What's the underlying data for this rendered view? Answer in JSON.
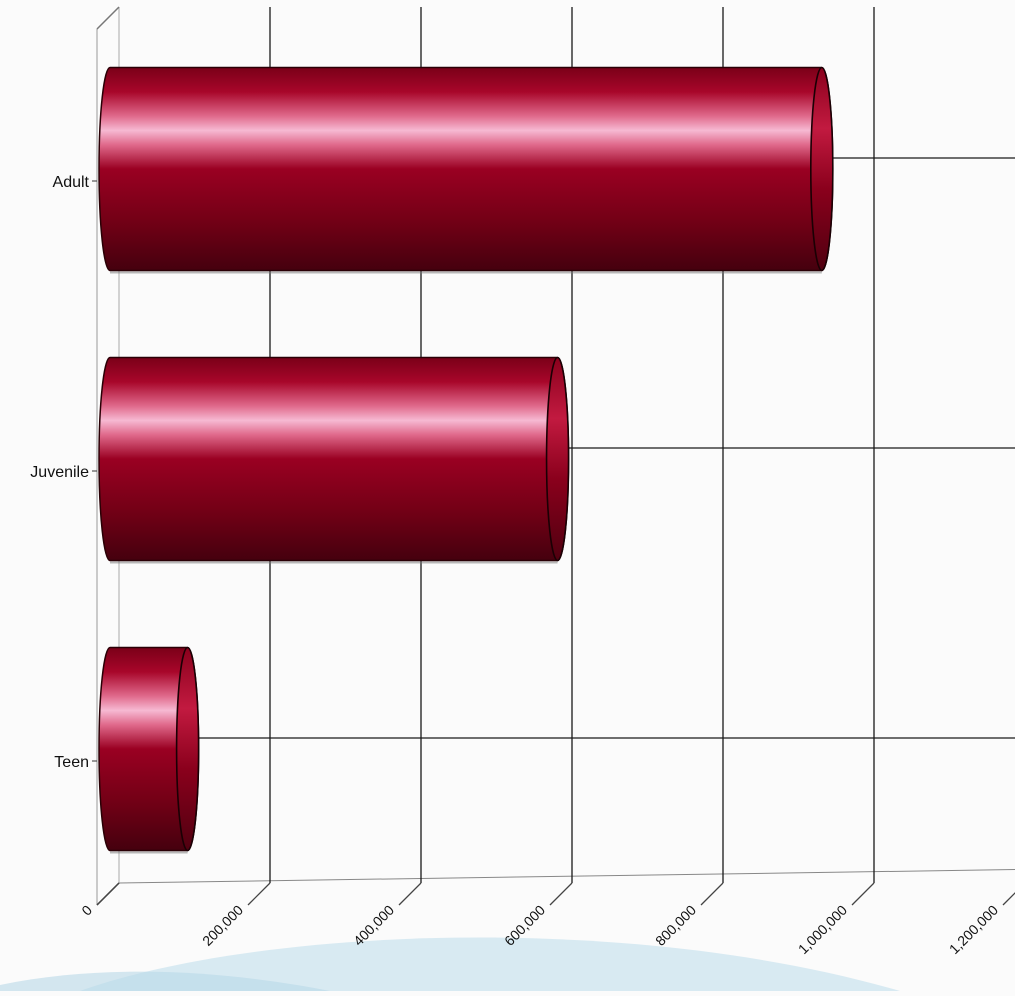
{
  "chart_data": {
    "type": "bar",
    "orientation": "horizontal",
    "style": "3d-cylinder",
    "title": "",
    "xlabel": "",
    "ylabel": "",
    "categories": [
      "Adult",
      "Juvenile",
      "Teen"
    ],
    "values": [
      960000,
      610000,
      120000
    ],
    "xlim": [
      0,
      1200000
    ],
    "x_ticks": [
      0,
      200000,
      400000,
      600000,
      800000,
      1000000,
      1200000
    ],
    "x_tick_labels": [
      "0",
      "200,000",
      "400,000",
      "600,000",
      "800,000",
      "1,000,000",
      "1,200,000"
    ],
    "grid": true,
    "legend": "none",
    "colors": {
      "bar_dark": "#4a0010",
      "bar_mid": "#9a0022",
      "bar_highlight": "#f4a6c6",
      "grid": "#1a1a1a",
      "background": "#fbfbfb",
      "decor_wave": "#cfe6f0"
    }
  }
}
